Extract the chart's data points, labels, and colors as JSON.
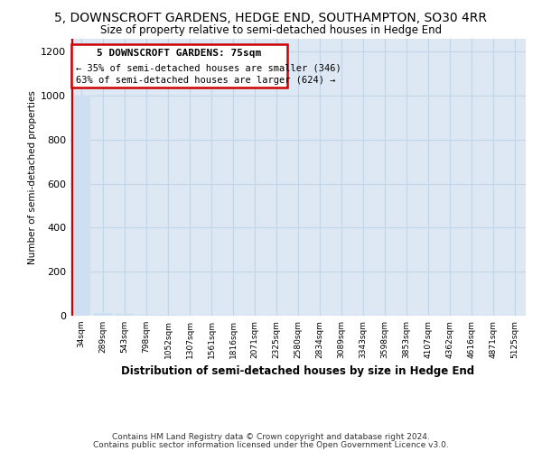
{
  "title": "5, DOWNSCROFT GARDENS, HEDGE END, SOUTHAMPTON, SO30 4RR",
  "subtitle": "Size of property relative to semi-detached houses in Hedge End",
  "xlabel": "Distribution of semi-detached houses by size in Hedge End",
  "ylabel": "Number of semi-detached properties",
  "footnote1": "Contains HM Land Registry data © Crown copyright and database right 2024.",
  "footnote2": "Contains public sector information licensed under the Open Government Licence v3.0.",
  "categories": [
    "34sqm",
    "289sqm",
    "543sqm",
    "798sqm",
    "1052sqm",
    "1307sqm",
    "1561sqm",
    "1816sqm",
    "2071sqm",
    "2325sqm",
    "2580sqm",
    "2834sqm",
    "3089sqm",
    "3343sqm",
    "3598sqm",
    "3853sqm",
    "4107sqm",
    "4362sqm",
    "4616sqm",
    "4871sqm",
    "5125sqm"
  ],
  "values": [
    1000,
    12,
    8,
    5,
    3,
    2,
    2,
    2,
    1,
    1,
    1,
    1,
    1,
    1,
    1,
    0,
    0,
    0,
    0,
    0,
    0
  ],
  "bar_color": "#cddff0",
  "bar_edge_color": "#cddff0",
  "annotation_box_color": "#cc0000",
  "vline_color": "#cc0000",
  "property_label": "5 DOWNSCROFT GARDENS: 75sqm",
  "smaller_pct": "35%",
  "smaller_count": 346,
  "larger_pct": "63%",
  "larger_count": 624,
  "ylim": [
    0,
    1260
  ],
  "background_color": "#ffffff",
  "plot_bg_color": "#dde8f4",
  "grid_color": "#c5d5e8"
}
